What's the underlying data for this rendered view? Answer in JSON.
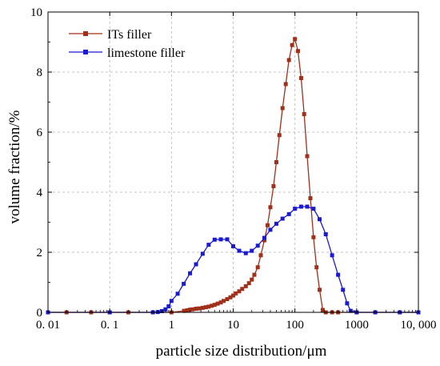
{
  "chart_data": {
    "type": "line",
    "title": "",
    "xlabel": "particle size distribution/μm",
    "ylabel": "volume fraction/%",
    "xscale": "log",
    "xlim": [
      0.01,
      10000
    ],
    "ylim": [
      0,
      10
    ],
    "x_ticks": [
      0.01,
      0.1,
      1,
      10,
      100,
      1000,
      10000
    ],
    "x_tick_labels": [
      "0. 01",
      "0. 1",
      "1",
      "10",
      "100",
      "1000",
      "10, 000"
    ],
    "y_ticks": [
      0,
      2,
      4,
      6,
      8,
      10
    ],
    "y_tick_labels": [
      "0",
      "2",
      "4",
      "6",
      "8",
      "10"
    ],
    "grid": true,
    "legend_position": "top-left",
    "series": [
      {
        "name": "ITs filler",
        "color": "#a0301a",
        "marker": "square",
        "x": [
          0.01,
          0.02,
          0.05,
          0.1,
          0.2,
          0.5,
          1,
          1.6,
          1.8,
          2.0,
          2.2,
          2.5,
          2.8,
          3.2,
          3.6,
          4.0,
          4.5,
          5.0,
          5.6,
          6.3,
          7.0,
          8.0,
          9.0,
          10,
          11,
          12.5,
          14,
          16,
          18,
          20,
          22,
          25,
          28,
          32,
          36,
          40,
          45,
          50,
          56,
          63,
          71,
          80,
          90,
          100,
          112,
          126,
          141,
          158,
          178,
          200,
          224,
          251,
          282,
          316,
          400,
          500,
          1000,
          2000,
          5000,
          10000
        ],
        "y": [
          0,
          0,
          0,
          0,
          0,
          0,
          0,
          0.05,
          0.07,
          0.09,
          0.1,
          0.12,
          0.13,
          0.15,
          0.17,
          0.19,
          0.22,
          0.25,
          0.29,
          0.33,
          0.38,
          0.44,
          0.5,
          0.56,
          0.63,
          0.7,
          0.78,
          0.87,
          0.97,
          1.09,
          1.25,
          1.5,
          1.9,
          2.4,
          2.9,
          3.5,
          4.2,
          5.0,
          5.9,
          6.8,
          7.6,
          8.4,
          8.9,
          9.1,
          8.7,
          7.8,
          6.6,
          5.2,
          3.8,
          2.5,
          1.5,
          0.75,
          0.08,
          0,
          0,
          0,
          0,
          0,
          0,
          0
        ]
      },
      {
        "name": "limestone filler",
        "color": "#1a1ad0",
        "marker": "square",
        "x": [
          0.01,
          0.1,
          0.5,
          0.6,
          0.7,
          0.8,
          0.9,
          1.0,
          1.26,
          1.58,
          2.0,
          2.5,
          3.2,
          4.0,
          5.0,
          6.3,
          8.0,
          10,
          12.5,
          16,
          20,
          25,
          32,
          40,
          50,
          63,
          80,
          100,
          126,
          158,
          200,
          251,
          316,
          400,
          500,
          600,
          700,
          800,
          1000,
          2000,
          5000,
          10000
        ],
        "y": [
          0,
          0,
          0,
          0.01,
          0.04,
          0.1,
          0.2,
          0.38,
          0.62,
          0.95,
          1.3,
          1.6,
          1.95,
          2.25,
          2.42,
          2.43,
          2.43,
          2.2,
          2.05,
          1.97,
          2.05,
          2.22,
          2.48,
          2.75,
          2.95,
          3.12,
          3.27,
          3.45,
          3.52,
          3.52,
          3.45,
          3.1,
          2.6,
          1.9,
          1.25,
          0.75,
          0.3,
          0.05,
          0,
          0,
          0,
          0
        ]
      }
    ]
  }
}
